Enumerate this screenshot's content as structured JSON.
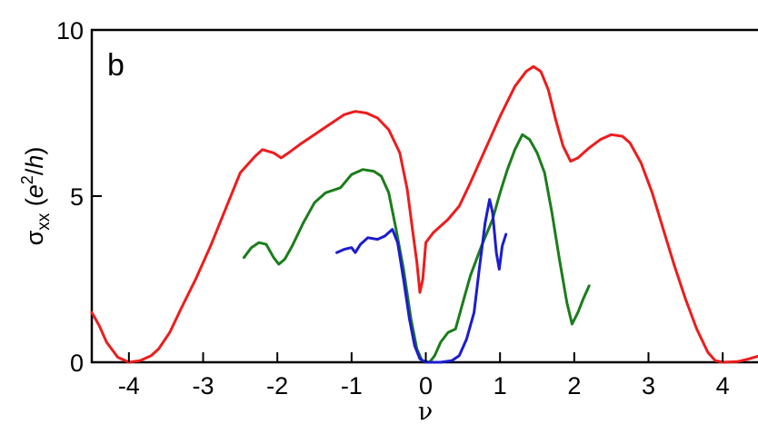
{
  "chart_data": {
    "type": "line",
    "panel_label": "b",
    "xlabel": "ν",
    "ylabel": {
      "symbol": "σ",
      "subscript": "xx",
      "unit_open": " (",
      "unit_e": "e",
      "unit_exp": "2",
      "unit_slash": "/",
      "unit_h": "h",
      "unit_close": ")"
    },
    "xlim": [
      -4.5,
      4.5
    ],
    "ylim": [
      0,
      10
    ],
    "x_ticks": [
      -4,
      -3,
      -2,
      -1,
      0,
      1,
      2,
      3,
      4
    ],
    "x_tick_labels": [
      "-4",
      "-3",
      "-2",
      "-1",
      "0",
      "1",
      "2",
      "3",
      "4"
    ],
    "y_ticks": [
      0,
      5,
      10
    ],
    "y_tick_labels": [
      "0",
      "5",
      "10"
    ],
    "grid": false,
    "colors": {
      "red": "#ee1c1c",
      "green": "#1b7d1b",
      "blue": "#1c1ccf"
    },
    "series": [
      {
        "color": "red",
        "points": [
          [
            -4.5,
            1.5
          ],
          [
            -4.4,
            1.1
          ],
          [
            -4.3,
            0.6
          ],
          [
            -4.15,
            0.15
          ],
          [
            -4.0,
            0.0
          ],
          [
            -3.85,
            0.05
          ],
          [
            -3.7,
            0.2
          ],
          [
            -3.6,
            0.4
          ],
          [
            -3.45,
            0.9
          ],
          [
            -3.3,
            1.6
          ],
          [
            -3.1,
            2.5
          ],
          [
            -2.9,
            3.5
          ],
          [
            -2.7,
            4.6
          ],
          [
            -2.5,
            5.7
          ],
          [
            -2.3,
            6.2
          ],
          [
            -2.2,
            6.4
          ],
          [
            -2.05,
            6.3
          ],
          [
            -1.95,
            6.15
          ],
          [
            -1.85,
            6.3
          ],
          [
            -1.7,
            6.55
          ],
          [
            -1.5,
            6.85
          ],
          [
            -1.3,
            7.15
          ],
          [
            -1.1,
            7.45
          ],
          [
            -0.95,
            7.55
          ],
          [
            -0.8,
            7.5
          ],
          [
            -0.65,
            7.35
          ],
          [
            -0.5,
            7.0
          ],
          [
            -0.35,
            6.3
          ],
          [
            -0.25,
            5.2
          ],
          [
            -0.18,
            4.0
          ],
          [
            -0.12,
            3.0
          ],
          [
            -0.08,
            2.1
          ],
          [
            -0.04,
            2.5
          ],
          [
            0.0,
            3.6
          ],
          [
            0.1,
            3.9
          ],
          [
            0.3,
            4.3
          ],
          [
            0.45,
            4.7
          ],
          [
            0.6,
            5.4
          ],
          [
            0.8,
            6.4
          ],
          [
            1.0,
            7.4
          ],
          [
            1.2,
            8.3
          ],
          [
            1.35,
            8.75
          ],
          [
            1.45,
            8.9
          ],
          [
            1.55,
            8.75
          ],
          [
            1.65,
            8.2
          ],
          [
            1.75,
            7.3
          ],
          [
            1.85,
            6.5
          ],
          [
            1.95,
            6.05
          ],
          [
            2.05,
            6.15
          ],
          [
            2.2,
            6.45
          ],
          [
            2.35,
            6.7
          ],
          [
            2.5,
            6.85
          ],
          [
            2.65,
            6.8
          ],
          [
            2.75,
            6.6
          ],
          [
            2.9,
            6.0
          ],
          [
            3.05,
            5.1
          ],
          [
            3.2,
            4.0
          ],
          [
            3.35,
            2.9
          ],
          [
            3.5,
            1.9
          ],
          [
            3.65,
            1.0
          ],
          [
            3.8,
            0.3
          ],
          [
            3.9,
            0.05
          ],
          [
            4.0,
            0.0
          ],
          [
            4.2,
            0.02
          ],
          [
            4.35,
            0.1
          ],
          [
            4.5,
            0.2
          ]
        ]
      },
      {
        "color": "green",
        "points": [
          [
            -2.45,
            3.15
          ],
          [
            -2.35,
            3.45
          ],
          [
            -2.25,
            3.6
          ],
          [
            -2.15,
            3.55
          ],
          [
            -2.05,
            3.15
          ],
          [
            -1.98,
            2.95
          ],
          [
            -1.9,
            3.1
          ],
          [
            -1.8,
            3.5
          ],
          [
            -1.65,
            4.2
          ],
          [
            -1.5,
            4.8
          ],
          [
            -1.35,
            5.1
          ],
          [
            -1.15,
            5.25
          ],
          [
            -1.0,
            5.65
          ],
          [
            -0.85,
            5.8
          ],
          [
            -0.7,
            5.75
          ],
          [
            -0.6,
            5.6
          ],
          [
            -0.5,
            5.1
          ],
          [
            -0.4,
            4.0
          ],
          [
            -0.3,
            2.8
          ],
          [
            -0.2,
            1.3
          ],
          [
            -0.12,
            0.4
          ],
          [
            -0.05,
            0.05
          ],
          [
            0.05,
            0.0
          ],
          [
            0.12,
            0.2
          ],
          [
            0.2,
            0.6
          ],
          [
            0.3,
            0.9
          ],
          [
            0.4,
            1.0
          ],
          [
            0.5,
            1.8
          ],
          [
            0.6,
            2.6
          ],
          [
            0.75,
            3.5
          ],
          [
            0.9,
            4.3
          ],
          [
            1.0,
            5.1
          ],
          [
            1.1,
            5.8
          ],
          [
            1.2,
            6.4
          ],
          [
            1.3,
            6.85
          ],
          [
            1.4,
            6.7
          ],
          [
            1.5,
            6.3
          ],
          [
            1.6,
            5.7
          ],
          [
            1.7,
            4.5
          ],
          [
            1.8,
            3.1
          ],
          [
            1.9,
            1.8
          ],
          [
            1.97,
            1.15
          ],
          [
            2.05,
            1.5
          ],
          [
            2.12,
            1.9
          ],
          [
            2.2,
            2.3
          ]
        ]
      },
      {
        "color": "blue",
        "points": [
          [
            -1.2,
            3.3
          ],
          [
            -1.1,
            3.4
          ],
          [
            -1.0,
            3.45
          ],
          [
            -0.95,
            3.3
          ],
          [
            -0.88,
            3.55
          ],
          [
            -0.78,
            3.75
          ],
          [
            -0.65,
            3.7
          ],
          [
            -0.55,
            3.8
          ],
          [
            -0.45,
            4.0
          ],
          [
            -0.38,
            3.6
          ],
          [
            -0.3,
            2.5
          ],
          [
            -0.22,
            1.3
          ],
          [
            -0.15,
            0.5
          ],
          [
            -0.08,
            0.1
          ],
          [
            0.0,
            0.0
          ],
          [
            0.2,
            0.0
          ],
          [
            0.35,
            0.05
          ],
          [
            0.45,
            0.2
          ],
          [
            0.55,
            0.7
          ],
          [
            0.65,
            1.5
          ],
          [
            0.72,
            2.8
          ],
          [
            0.8,
            4.2
          ],
          [
            0.86,
            4.9
          ],
          [
            0.9,
            4.5
          ],
          [
            0.95,
            3.3
          ],
          [
            0.99,
            2.8
          ],
          [
            1.03,
            3.5
          ],
          [
            1.08,
            3.85
          ]
        ]
      }
    ]
  }
}
